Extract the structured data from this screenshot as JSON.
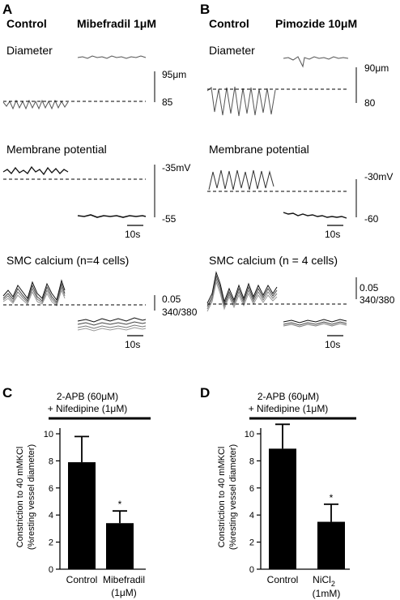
{
  "panels": {
    "A": {
      "letter": "A",
      "control": "Control",
      "drug": "Mibefradil 1μM",
      "diameter_label": "Diameter",
      "diam_scale_top": "95μm",
      "diam_scale_bottom": "85",
      "membrane_label": "Membrane potential",
      "mem_scale_top": "-35mV",
      "mem_scale_bottom": "-55",
      "mem_time": "10s",
      "calcium_label": "SMC calcium (n=4 cells)",
      "ca_scale_1": "0.05",
      "ca_scale_2": "340/380",
      "ca_time": "10s"
    },
    "B": {
      "letter": "B",
      "control": "Control",
      "drug": "Pimozide 10μM",
      "diameter_label": "Diameter",
      "diam_scale_top": "90μm",
      "diam_scale_bottom": "80",
      "membrane_label": "Membrane potential",
      "mem_scale_top": "-30mV",
      "mem_scale_bottom": "-60",
      "mem_time": "10s",
      "calcium_label": "SMC calcium (n = 4 cells)",
      "ca_scale_1": "0.05",
      "ca_scale_2": "340/380",
      "ca_time": "10s"
    }
  },
  "chart_data": [
    {
      "type": "bar",
      "panel": "C",
      "treatment_line1": "2-APB (60μM)",
      "treatment_line2": "+ Nifedipine (1μM)",
      "ylabel_line1": "Constriction to 40 mMKCl",
      "ylabel_line2": "(%resting vessel diameter)",
      "categories": [
        "Control",
        "Mibefradil"
      ],
      "category_sublabels": [
        "",
        "(1μM)"
      ],
      "values": [
        7.9,
        3.4
      ],
      "errors": [
        1.9,
        0.9
      ],
      "significance": [
        "",
        "*"
      ],
      "ylim": [
        0,
        10
      ],
      "yticks": [
        "0",
        "2",
        "4",
        "6",
        "8",
        "10"
      ],
      "bar_color": "#000000"
    },
    {
      "type": "bar",
      "panel": "D",
      "treatment_line1": "2-APB (60μM)",
      "treatment_line2": "+ Nifedipine (1μM)",
      "ylabel_line1": "Constriction to 40 mMKCl",
      "ylabel_line2": "(%resting vessel diameter)",
      "categories": [
        "Control",
        "NiCl"
      ],
      "category_subscripts": [
        "",
        "2"
      ],
      "category_sublabels": [
        "",
        "(1mM)"
      ],
      "values": [
        8.9,
        3.5
      ],
      "errors": [
        1.8,
        1.3
      ],
      "significance": [
        "",
        "*"
      ],
      "ylim": [
        0,
        10
      ],
      "yticks": [
        "0",
        "2",
        "4",
        "6",
        "8",
        "10"
      ],
      "bar_color": "#000000"
    }
  ]
}
